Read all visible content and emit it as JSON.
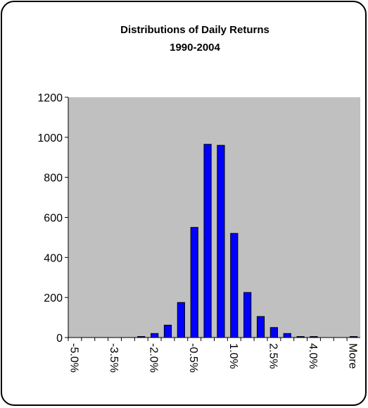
{
  "chart_data": {
    "type": "bar",
    "title": "Distributions of Daily Returns",
    "subtitle": "1990-2004",
    "categories": [
      "-5.0%",
      null,
      null,
      "-3.5%",
      null,
      null,
      "-2.0%",
      null,
      null,
      "-0.5%",
      null,
      null,
      "1.0%",
      null,
      null,
      "2.5%",
      null,
      null,
      "4.0%",
      null,
      null,
      "More"
    ],
    "values": [
      0,
      0,
      0,
      0,
      0,
      5,
      20,
      62,
      175,
      550,
      965,
      960,
      520,
      225,
      105,
      50,
      20,
      5,
      5,
      0,
      0,
      5
    ],
    "color": "#0000ff",
    "ylim": [
      0,
      1200
    ],
    "yticks": [
      0,
      200,
      400,
      600,
      800,
      1000,
      1200
    ],
    "grid": false
  }
}
